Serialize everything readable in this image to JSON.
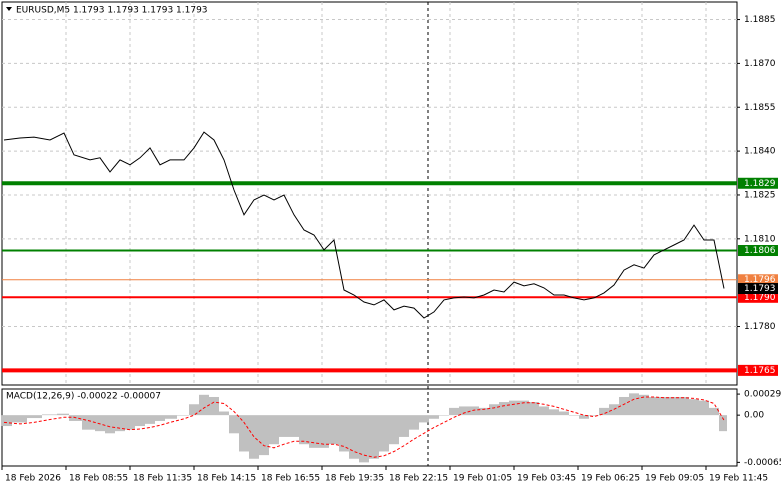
{
  "chart_data": [
    {
      "type": "line",
      "title": "EURUSD,M5  1.1793 1.1793 1.1793 1.1793",
      "color": "#000000",
      "x": [
        1,
        9,
        16,
        24,
        31,
        36,
        44,
        49,
        54,
        59,
        64,
        69,
        74,
        79,
        84,
        91,
        96,
        101,
        106,
        111,
        116,
        121,
        126,
        131,
        136,
        141,
        146,
        151,
        156,
        161,
        166,
        171,
        176,
        181,
        186,
        191,
        196,
        201,
        206,
        211,
        216,
        221,
        226,
        231,
        236,
        241,
        246,
        251,
        256,
        261,
        266,
        271,
        276,
        281,
        286,
        291,
        296,
        301,
        306,
        311,
        316,
        321,
        326,
        331,
        336,
        341,
        346,
        351,
        356,
        361
      ],
      "values": [
        1.18438,
        1.18445,
        1.18448,
        1.18438,
        1.18462,
        1.18387,
        1.1837,
        1.18377,
        1.18329,
        1.1837,
        1.18353,
        1.18377,
        1.18411,
        1.18353,
        1.1837,
        1.1837,
        1.18411,
        1.18465,
        1.18438,
        1.1837,
        1.18267,
        1.18182,
        1.18233,
        1.1825,
        1.18233,
        1.1825,
        1.18182,
        1.1813,
        1.18113,
        1.18062,
        1.18096,
        1.17925,
        1.17908,
        1.17884,
        1.17874,
        1.17891,
        1.17857,
        1.1787,
        1.17863,
        1.17829,
        1.1785,
        1.17891,
        1.17898,
        1.17901,
        1.17898,
        1.17908,
        1.17925,
        1.17918,
        1.17952,
        1.17939,
        1.17946,
        1.17932,
        1.17908,
        1.17908,
        1.17898,
        1.17891,
        1.17898,
        1.17915,
        1.17942,
        1.17993,
        1.18011,
        1.18,
        1.18045,
        1.18062,
        1.18079,
        1.18096,
        1.18147,
        1.18096,
        1.18096,
        1.1793
      ],
      "xlim": [
        0,
        367.5
      ],
      "ylim": [
        1.176,
        1.1891
      ],
      "yticks": [
        1.1885,
        {
          "value": 1.187,
          "label": "1.1870"
        },
        1.1855,
        {
          "value": 1.184,
          "label": "1.1840"
        },
        1.1825,
        {
          "value": 1.181,
          "label": "1.1810"
        },
        {
          "value": 1.178,
          "label": "1.1780"
        }
      ],
      "grid": true,
      "levels": [
        {
          "value": 1.1829,
          "label": "1.1829",
          "color": "#008000",
          "line_width": 4
        },
        {
          "value": 1.1806,
          "label": "1.1806",
          "color": "#008000",
          "line_width": 2
        },
        {
          "value": 1.1796,
          "label": "1.1796",
          "color": "#f08040",
          "line_width": 1
        },
        {
          "value": 1.179,
          "label": "1.1790",
          "color": "#ff0000",
          "line_width": 2
        },
        {
          "value": 1.1765,
          "label": "1.1765",
          "color": "#ff0000",
          "line_width": 4
        }
      ],
      "last_price": {
        "value": 1.1793,
        "label": "1.1793"
      }
    },
    {
      "type": "macd",
      "title": "MACD(12,26,9) -0.00022 -0.00007",
      "x": [
        1,
        9,
        16,
        24,
        31,
        36,
        44,
        49,
        54,
        59,
        64,
        69,
        74,
        79,
        84,
        91,
        96,
        101,
        106,
        111,
        116,
        121,
        126,
        131,
        136,
        141,
        146,
        151,
        156,
        161,
        166,
        171,
        176,
        181,
        186,
        191,
        196,
        201,
        206,
        211,
        216,
        221,
        226,
        231,
        236,
        241,
        246,
        251,
        256,
        261,
        266,
        271,
        276,
        281,
        286,
        291,
        296,
        301,
        306,
        311,
        316,
        321,
        326,
        331,
        336,
        341,
        346,
        351,
        356,
        361
      ],
      "series": [
        {
          "kind": "histogram",
          "color": "#c0c0c0",
          "values": [
            -0.00015,
            -0.0001,
            -4e-05,
            1e-05,
            2e-05,
            -8e-05,
            -0.0002,
            -0.00022,
            -0.00025,
            -0.00022,
            -0.0002,
            -0.00015,
            -0.00012,
            -8e-05,
            -5e-05,
            0,
            0.00015,
            0.00028,
            0.00025,
            5e-05,
            -0.00025,
            -0.0005,
            -0.0006,
            -0.00055,
            -0.0004,
            -0.0003,
            -0.0003,
            -0.0004,
            -0.00045,
            -0.00045,
            -0.0004,
            -0.0005,
            -0.0006,
            -0.00065,
            -0.0006,
            -0.0005,
            -0.0004,
            -0.0003,
            -0.0002,
            -0.0001,
            -5e-05,
            0,
            0.0001,
            0.00012,
            0.00012,
            0.0001,
            0.00015,
            0.00018,
            0.0002,
            0.0002,
            0.00018,
            0.00012,
            8e-05,
            5e-05,
            0,
            -5e-05,
            0,
            0.0001,
            0.00015,
            0.00025,
            0.0003,
            0.00028,
            0.00025,
            0.00025,
            0.00025,
            0.00025,
            0.00022,
            0.0002,
            0.0001,
            -0.00022
          ]
        },
        {
          "kind": "line",
          "color": "#ff0000",
          "values": [
            -0.0001,
            -0.00012,
            -0.0001,
            -6e-05,
            -3e-05,
            -3e-05,
            -8e-05,
            -0.00012,
            -0.00016,
            -0.00018,
            -0.0002,
            -0.00019,
            -0.00017,
            -0.00014,
            -0.0001,
            -5e-05,
            0,
            0.0001,
            0.00018,
            0.00016,
            5e-05,
            -0.0001,
            -0.0003,
            -0.00042,
            -0.00045,
            -0.0004,
            -0.00036,
            -0.00036,
            -0.00038,
            -0.0004,
            -0.0004,
            -0.00043,
            -0.0005,
            -0.00055,
            -0.00058,
            -0.00056,
            -0.0005,
            -0.00042,
            -0.00033,
            -0.00025,
            -0.00017,
            -0.0001,
            -3e-05,
            3e-05,
            7e-05,
            8e-05,
            0.0001,
            0.00013,
            0.00015,
            0.00017,
            0.00017,
            0.00015,
            0.00012,
            8e-05,
            4e-05,
            0,
            -2e-05,
            2e-05,
            8e-05,
            0.00015,
            0.00022,
            0.00025,
            0.00025,
            0.00024,
            0.00024,
            0.00024,
            0.00023,
            0.00021,
            0.00016,
            -7e-05
          ]
        }
      ],
      "xlim": [
        0,
        367.5
      ],
      "ylim": [
        -0.0007,
        0.00036
      ],
      "yticks": [
        0.00029,
        {
          "value": 0,
          "label": "0.00"
        },
        -0.00065
      ],
      "xticks": [
        {
          "value": 0,
          "label": "18 Feb 2026"
        },
        {
          "value": 32,
          "label": "18 Feb 08:55"
        },
        {
          "value": 64,
          "label": "18 Feb 11:35"
        },
        {
          "value": 96,
          "label": "18 Feb 14:15"
        },
        {
          "value": 128,
          "label": "18 Feb 16:55"
        },
        {
          "value": 160,
          "label": "18 Feb 19:35"
        },
        {
          "value": 192,
          "label": "18 Feb 22:15"
        },
        {
          "value": 224,
          "label": "19 Feb 01:05"
        },
        {
          "value": 256,
          "label": "19 Feb 03:45"
        },
        {
          "value": 288,
          "label": "19 Feb 06:25"
        },
        {
          "value": 320,
          "label": "19 Feb 09:05"
        },
        {
          "value": 352,
          "label": "19 Feb 11:45"
        }
      ]
    }
  ]
}
